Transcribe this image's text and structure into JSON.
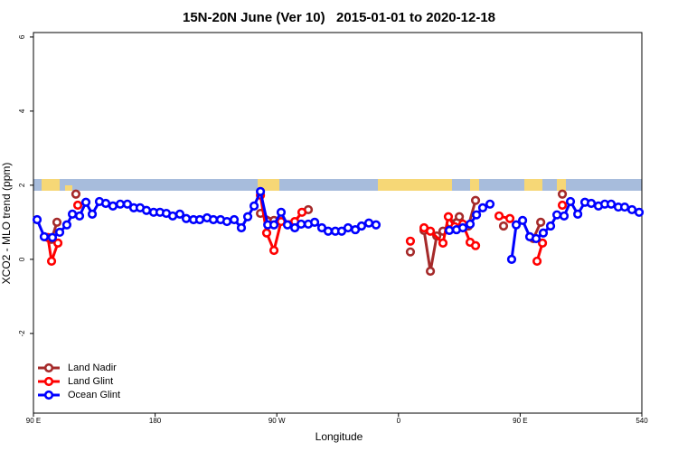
{
  "chart_data": {
    "type": "line",
    "title": "15N-20N June (Ver 10)   2015-01-01 to 2020-12-18",
    "x_label": "Longitude",
    "y_label": "XCO2 - MLO trend (ppm)",
    "xlim": [
      90,
      540
    ],
    "ylim": [
      -4.15,
      6.12
    ],
    "xticks": [
      {
        "value": 90,
        "label": "90 E"
      },
      180,
      {
        "value": 270,
        "label": "90 W"
      },
      {
        "value": 360,
        "label": "0"
      },
      {
        "value": 450,
        "label": "90 E"
      },
      540
    ],
    "yticks": [
      -2,
      0,
      2,
      4,
      6
    ],
    "legend": "bottomleft",
    "series": [
      {
        "name": "Land Nadir",
        "color": "#a52a2a",
        "x": [
          103.4,
          107.4,
          114,
          121.4,
          190,
          257.9,
          267.9,
          280,
          293.3,
          330,
          368.8,
          374,
          378.9,
          383.6,
          388.3,
          392.9,
          398.3,
          405.0,
          411.7,
          417.0,
          427,
          437.7,
          450,
          459.8,
          465.2,
          474,
          481.2
        ],
        "values": [
          0.54,
          1.0,
          null,
          1.76,
          null,
          1.24,
          1.05,
          null,
          1.34,
          null,
          0.2,
          null,
          0.78,
          -0.32,
          0.63,
          0.76,
          0.98,
          1.15,
          0.9,
          1.59,
          null,
          0.9,
          null,
          0.56,
          1.0,
          null,
          1.76
        ]
      },
      {
        "name": "Land Glint",
        "color": "#ff0000",
        "x": [
          100.7,
          103.4,
          108.1,
          115,
          122.8,
          190,
          257.9,
          262.5,
          267.9,
          273.2,
          283.3,
          288.6,
          330,
          368.8,
          374,
          378.9,
          383.6,
          392.9,
          396.9,
          401.6,
          407.6,
          413.0,
          417.0,
          425,
          434.4,
          442.4,
          452,
          462.5,
          466.5,
          474,
          481.2
        ],
        "values": [
          0.59,
          -0.05,
          0.44,
          null,
          1.46,
          null,
          1.73,
          0.71,
          0.24,
          1.02,
          1.02,
          1.27,
          null,
          0.49,
          null,
          0.85,
          0.76,
          0.44,
          1.15,
          0.88,
          0.95,
          0.46,
          0.37,
          null,
          1.17,
          1.1,
          null,
          -0.05,
          0.44,
          null,
          1.46
        ]
      },
      {
        "name": "Ocean Glint",
        "color": "#0000ff",
        "x": [
          92.7,
          98.0,
          104.0,
          109.4,
          114.7,
          118.8,
          124.1,
          128.8,
          133.5,
          138.8,
          143.5,
          148.8,
          154.2,
          159.5,
          164.2,
          168.9,
          173.6,
          178.9,
          183.6,
          188.3,
          193.0,
          198.3,
          203.0,
          208.4,
          213.0,
          218.4,
          223.1,
          228.4,
          233.1,
          238.5,
          243.8,
          248.5,
          253.2,
          257.9,
          263.3,
          267.9,
          273.2,
          277.9,
          283.3,
          288.0,
          293.3,
          298.0,
          303.3,
          308.0,
          313.3,
          318.0,
          322.7,
          328.1,
          332.7,
          338.1,
          343.4,
          370,
          397.6,
          402.9,
          407.6,
          413.0,
          417.7,
          422.3,
          427.7,
          436,
          443.7,
          447.1,
          451.8,
          457.1,
          461.8,
          467.1,
          472.5,
          477.2,
          482.5,
          487.2,
          492.6,
          497.9,
          502.6,
          507.9,
          512.6,
          517.3,
          522.6,
          527.3,
          532.7,
          538.0
        ],
        "values": [
          1.07,
          0.61,
          0.59,
          0.73,
          0.93,
          1.22,
          1.17,
          1.54,
          1.22,
          1.56,
          1.51,
          1.44,
          1.49,
          1.49,
          1.39,
          1.39,
          1.32,
          1.27,
          1.27,
          1.24,
          1.17,
          1.22,
          1.1,
          1.07,
          1.07,
          1.12,
          1.07,
          1.07,
          1.02,
          1.07,
          0.85,
          1.15,
          1.44,
          1.83,
          0.93,
          0.93,
          1.27,
          0.93,
          0.85,
          0.95,
          0.95,
          1.0,
          0.85,
          0.76,
          0.76,
          0.76,
          0.85,
          0.8,
          0.9,
          0.98,
          0.93,
          null,
          0.78,
          0.8,
          0.85,
          0.95,
          1.2,
          1.39,
          1.49,
          null,
          0.0,
          0.93,
          1.05,
          0.61,
          0.56,
          0.71,
          0.9,
          1.2,
          1.17,
          1.56,
          1.22,
          1.54,
          1.51,
          1.44,
          1.49,
          1.49,
          1.41,
          1.41,
          1.34,
          1.27
        ]
      }
    ]
  }
}
